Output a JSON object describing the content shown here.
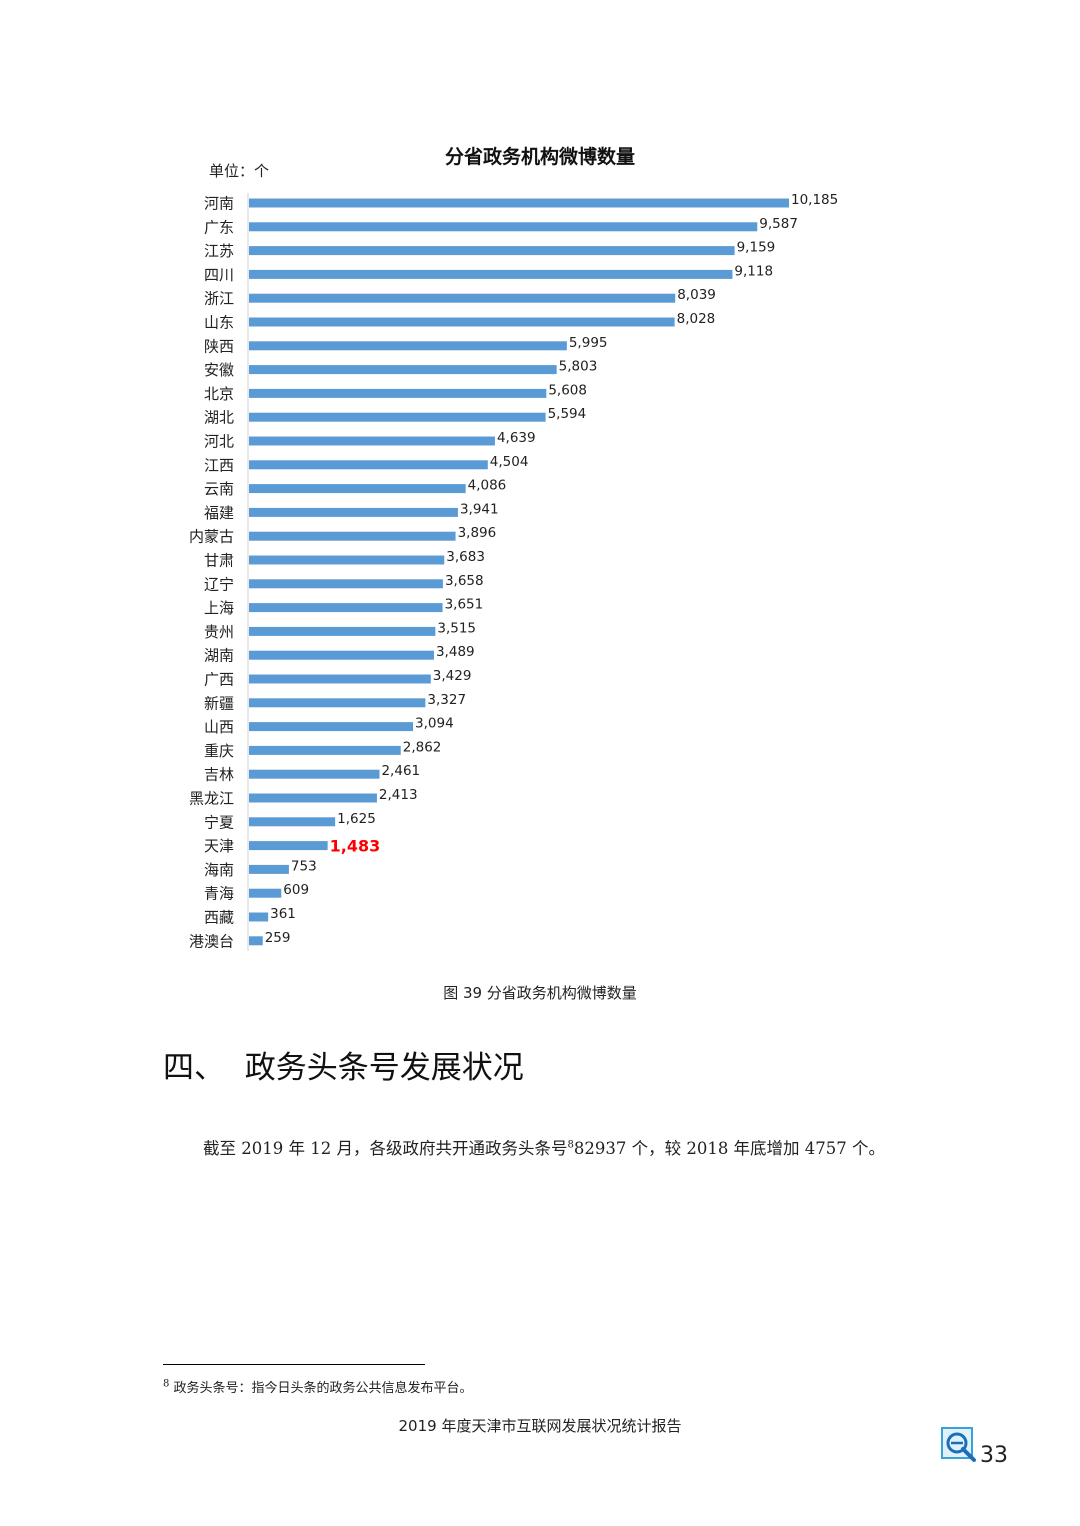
{
  "chart_data": {
    "type": "bar",
    "orientation": "horizontal",
    "title": "分省政务机构微博数量",
    "unit_label": "单位：个",
    "categories": [
      "河南",
      "广东",
      "江苏",
      "四川",
      "浙江",
      "山东",
      "陕西",
      "安徽",
      "北京",
      "湖北",
      "河北",
      "江西",
      "云南",
      "福建",
      "内蒙古",
      "甘肃",
      "辽宁",
      "上海",
      "贵州",
      "湖南",
      "广西",
      "新疆",
      "山西",
      "重庆",
      "吉林",
      "黑龙江",
      "宁夏",
      "天津",
      "海南",
      "青海",
      "西藏",
      "港澳台"
    ],
    "values": [
      10185,
      9587,
      9159,
      9118,
      8039,
      8028,
      5995,
      5803,
      5608,
      5594,
      4639,
      4504,
      4086,
      3941,
      3896,
      3683,
      3658,
      3651,
      3515,
      3489,
      3429,
      3327,
      3094,
      2862,
      2461,
      2413,
      1625,
      1483,
      753,
      609,
      361,
      259
    ],
    "value_labels": [
      "10,185",
      "9,587",
      "9,159",
      "9,118",
      "8,039",
      "8,028",
      "5,995",
      "5,803",
      "5,608",
      "5,594",
      "4,639",
      "4,504",
      "4,086",
      "3,941",
      "3,896",
      "3,683",
      "3,658",
      "3,651",
      "3,515",
      "3,489",
      "3,429",
      "3,327",
      "3,094",
      "2,862",
      "2,461",
      "2,413",
      "1,625",
      "1,483",
      "753",
      "609",
      "361",
      "259"
    ],
    "highlight_category": "天津",
    "bar_color": "#5b9bd5",
    "highlight_label_color": "#ff0000",
    "xlim": [
      0,
      10185
    ],
    "grid": false,
    "legend": "none"
  },
  "caption": "图 39  分省政务机构微博数量",
  "section_heading": "四、  政务头条号发展状况",
  "paragraph": {
    "before": "截至 2019 年 12 月，各级政府共开通政务头条号",
    "sup": "8",
    "after": "82937 个，较 2018 年底增加 4757 个。"
  },
  "footnote": {
    "marker": "8",
    "text": " 政务头条号：指今日头条的政务公共信息发布平台。"
  },
  "footer": {
    "report_title": "2019 年度天津市互联网发展状况统计报告",
    "page_number": "33",
    "logo_icon": "magnifier-e-logo-icon"
  }
}
